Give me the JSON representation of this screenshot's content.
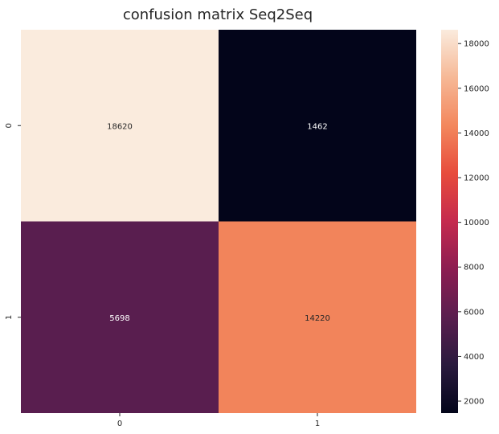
{
  "chart_data": {
    "type": "heatmap",
    "title": "confusion matrix Seq2Seq",
    "xlabel": "",
    "ylabel": "",
    "x_categories": [
      "0",
      "1"
    ],
    "y_categories": [
      "0",
      "1"
    ],
    "values": [
      [
        18620,
        1462
      ],
      [
        5698,
        14220
      ]
    ],
    "colorbar": {
      "min": 1462,
      "max": 18620,
      "ticks": [
        2000,
        4000,
        6000,
        8000,
        10000,
        12000,
        14000,
        16000,
        18000
      ]
    },
    "colormap": [
      "#03051a",
      "#2a1a3e",
      "#5a1e4f",
      "#8c1d52",
      "#c52a4e",
      "#e74c3c",
      "#f3875d",
      "#f6b896",
      "#faebdd"
    ],
    "grid": false
  }
}
